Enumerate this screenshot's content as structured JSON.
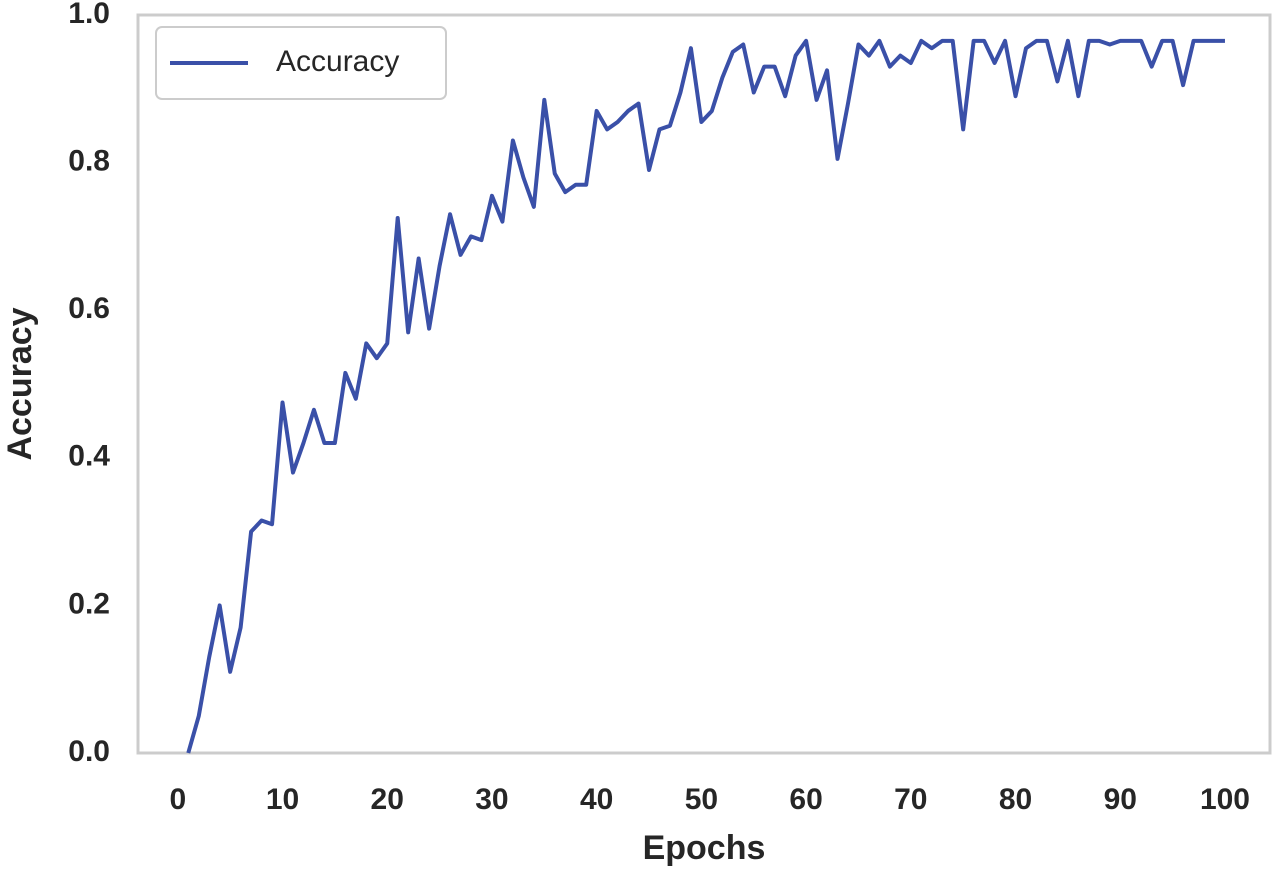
{
  "chart_data": {
    "type": "line",
    "xlabel": "Epochs",
    "ylabel": "Accuracy",
    "x": [
      1,
      2,
      3,
      4,
      5,
      6,
      7,
      8,
      9,
      10,
      11,
      12,
      13,
      14,
      15,
      16,
      17,
      18,
      19,
      20,
      21,
      22,
      23,
      24,
      25,
      26,
      27,
      28,
      29,
      30,
      31,
      32,
      33,
      34,
      35,
      36,
      37,
      38,
      39,
      40,
      41,
      42,
      43,
      44,
      45,
      46,
      47,
      48,
      49,
      50,
      51,
      52,
      53,
      54,
      55,
      56,
      57,
      58,
      59,
      60,
      61,
      62,
      63,
      64,
      65,
      66,
      67,
      68,
      69,
      70,
      71,
      72,
      73,
      74,
      75,
      76,
      77,
      78,
      79,
      80,
      81,
      82,
      83,
      84,
      85,
      86,
      87,
      88,
      89,
      90,
      91,
      92,
      93,
      94,
      95,
      96,
      97,
      98,
      99,
      100
    ],
    "series": [
      {
        "name": "Accuracy",
        "color": "#3a50a8",
        "values": [
          0.0,
          0.05,
          0.13,
          0.2,
          0.11,
          0.17,
          0.3,
          0.315,
          0.31,
          0.475,
          0.38,
          0.42,
          0.465,
          0.42,
          0.42,
          0.515,
          0.48,
          0.555,
          0.535,
          0.555,
          0.725,
          0.57,
          0.67,
          0.575,
          0.66,
          0.73,
          0.675,
          0.7,
          0.695,
          0.755,
          0.72,
          0.83,
          0.78,
          0.74,
          0.885,
          0.785,
          0.76,
          0.77,
          0.77,
          0.87,
          0.845,
          0.855,
          0.87,
          0.88,
          0.79,
          0.845,
          0.85,
          0.895,
          0.955,
          0.855,
          0.87,
          0.915,
          0.95,
          0.96,
          0.895,
          0.93,
          0.93,
          0.89,
          0.945,
          0.965,
          0.885,
          0.925,
          0.805,
          0.88,
          0.96,
          0.945,
          0.965,
          0.93,
          0.945,
          0.935,
          0.965,
          0.955,
          0.965,
          0.965,
          0.845,
          0.965,
          0.965,
          0.935,
          0.965,
          0.89,
          0.955,
          0.965,
          0.965,
          0.91,
          0.965,
          0.89,
          0.965,
          0.965,
          0.96,
          0.965,
          0.965,
          0.965,
          0.93,
          0.965,
          0.965,
          0.905,
          0.965,
          0.965,
          0.965,
          0.965
        ]
      }
    ],
    "xlim": [
      -3.8,
      104.3
    ],
    "ylim": [
      0,
      1
    ],
    "xticks": [
      0,
      10,
      20,
      30,
      40,
      50,
      60,
      70,
      80,
      90,
      100
    ],
    "yticks": [
      {
        "value": 0,
        "label": "0.0"
      },
      0.2,
      0.4,
      0.6,
      0.8,
      {
        "value": 1,
        "label": "1.0"
      }
    ],
    "grid": false,
    "legend": "upper left"
  }
}
